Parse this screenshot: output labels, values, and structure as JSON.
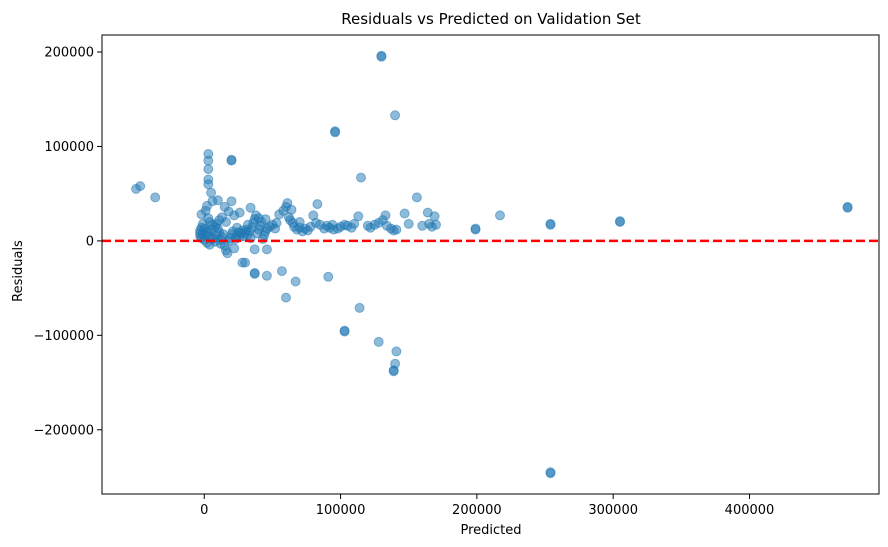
{
  "chart_data": {
    "type": "scatter",
    "title": "Residuals vs Predicted on Validation Set",
    "xlabel": "Predicted",
    "ylabel": "Residuals",
    "xlim": [
      -75000,
      495000
    ],
    "ylim": [
      -268000,
      218000
    ],
    "x_ticks": [
      0,
      100000,
      200000,
      300000,
      400000
    ],
    "x_tick_labels": [
      "0",
      "100000",
      "200000",
      "300000",
      "400000"
    ],
    "y_ticks": [
      -200000,
      -100000,
      0,
      100000,
      200000
    ],
    "y_tick_labels": [
      "−200000",
      "−100000",
      "0",
      "100000",
      "200000"
    ],
    "grid": false,
    "reference_line": {
      "y": 0,
      "color": "#ff0000",
      "style": "dashed"
    },
    "marker_color": "#1f77b4",
    "marker_alpha": 0.5,
    "points": [
      {
        "x": -50000,
        "y": 55000
      },
      {
        "x": -47000,
        "y": 58000
      },
      {
        "x": -36000,
        "y": 46000
      },
      {
        "x": 3000,
        "y": 92000
      },
      {
        "x": 3000,
        "y": 85000
      },
      {
        "x": 3000,
        "y": 76000
      },
      {
        "x": 3000,
        "y": 65000
      },
      {
        "x": 3000,
        "y": 60000
      },
      {
        "x": 5000,
        "y": 51000
      },
      {
        "x": 6000,
        "y": 42000
      },
      {
        "x": 2000,
        "y": 37000
      },
      {
        "x": 1000,
        "y": 32000
      },
      {
        "x": -2000,
        "y": 28000
      },
      {
        "x": 3000,
        "y": 24000
      },
      {
        "x": 4000,
        "y": 20000
      },
      {
        "x": 6000,
        "y": 17000
      },
      {
        "x": 8000,
        "y": 15000
      },
      {
        "x": 10000,
        "y": 13000
      },
      {
        "x": -1000,
        "y": 18000
      },
      {
        "x": -2000,
        "y": 14000
      },
      {
        "x": -3000,
        "y": 11000
      },
      {
        "x": -3000,
        "y": 8000
      },
      {
        "x": -3000,
        "y": 5000
      },
      {
        "x": -2000,
        "y": 3000
      },
      {
        "x": 0,
        "y": 1000
      },
      {
        "x": 2000,
        "y": -2000
      },
      {
        "x": 4000,
        "y": -4000
      },
      {
        "x": 1000,
        "y": 6000
      },
      {
        "x": 3000,
        "y": 9000
      },
      {
        "x": 5000,
        "y": 12000
      },
      {
        "x": 7000,
        "y": 3000
      },
      {
        "x": 9000,
        "y": 6000
      },
      {
        "x": 11000,
        "y": 9000
      },
      {
        "x": 12000,
        "y": 1000
      },
      {
        "x": 13000,
        "y": 4000
      },
      {
        "x": 14000,
        "y": 7000
      },
      {
        "x": 15000,
        "y": -5000
      },
      {
        "x": 16000,
        "y": -10000
      },
      {
        "x": 17000,
        "y": -13000
      },
      {
        "x": 18000,
        "y": 0
      },
      {
        "x": 19000,
        "y": 3000
      },
      {
        "x": 20000,
        "y": 7000
      },
      {
        "x": 21000,
        "y": 10000
      },
      {
        "x": 22000,
        "y": -8000
      },
      {
        "x": 23000,
        "y": 2000
      },
      {
        "x": 24000,
        "y": 6000
      },
      {
        "x": 25000,
        "y": 9000
      },
      {
        "x": 26000,
        "y": 4000
      },
      {
        "x": 27000,
        "y": 8000
      },
      {
        "x": 28000,
        "y": 11000
      },
      {
        "x": 29000,
        "y": 5000
      },
      {
        "x": 30000,
        "y": 9000
      },
      {
        "x": 31000,
        "y": 12000
      },
      {
        "x": 32000,
        "y": 6000
      },
      {
        "x": 33000,
        "y": 10000
      },
      {
        "x": 34000,
        "y": 3000
      },
      {
        "x": 35000,
        "y": 14000
      },
      {
        "x": 36000,
        "y": 19000
      },
      {
        "x": 37000,
        "y": 23000
      },
      {
        "x": 38000,
        "y": 27000
      },
      {
        "x": 39000,
        "y": 8000
      },
      {
        "x": 40000,
        "y": 12000
      },
      {
        "x": 41000,
        "y": 16000
      },
      {
        "x": 42000,
        "y": 20000
      },
      {
        "x": 43000,
        "y": 2000
      },
      {
        "x": 44000,
        "y": 6000
      },
      {
        "x": 45000,
        "y": 10000
      },
      {
        "x": 46000,
        "y": 13000
      },
      {
        "x": 48000,
        "y": 15000
      },
      {
        "x": 50000,
        "y": 17000
      },
      {
        "x": 53000,
        "y": 19000
      },
      {
        "x": 55000,
        "y": 28000
      },
      {
        "x": 58000,
        "y": 32000
      },
      {
        "x": 60000,
        "y": 36000
      },
      {
        "x": 61000,
        "y": 40000
      },
      {
        "x": 62000,
        "y": 25000
      },
      {
        "x": 63000,
        "y": 22000
      },
      {
        "x": 65000,
        "y": 19000
      },
      {
        "x": 66000,
        "y": 15000
      },
      {
        "x": 68000,
        "y": 12000
      },
      {
        "x": 70000,
        "y": 14000
      },
      {
        "x": 72000,
        "y": 10000
      },
      {
        "x": 74000,
        "y": 13000
      },
      {
        "x": 76000,
        "y": 11000
      },
      {
        "x": 78000,
        "y": 15000
      },
      {
        "x": 80000,
        "y": 27000
      },
      {
        "x": 83000,
        "y": 39000
      },
      {
        "x": 85000,
        "y": 17000
      },
      {
        "x": 88000,
        "y": 13000
      },
      {
        "x": 90000,
        "y": 16000
      },
      {
        "x": 92000,
        "y": 14000
      },
      {
        "x": 95000,
        "y": 12000
      },
      {
        "x": 98000,
        "y": 13000
      },
      {
        "x": 100000,
        "y": 15000
      },
      {
        "x": 103000,
        "y": 17000
      },
      {
        "x": 105000,
        "y": 16000
      },
      {
        "x": 110000,
        "y": 18000
      },
      {
        "x": 113000,
        "y": 26000
      },
      {
        "x": 115000,
        "y": 67000
      },
      {
        "x": 122000,
        "y": 14000
      },
      {
        "x": 125000,
        "y": 17000
      },
      {
        "x": 128000,
        "y": 19000
      },
      {
        "x": 131000,
        "y": 22000
      },
      {
        "x": 133000,
        "y": 27000
      },
      {
        "x": 137000,
        "y": 13000
      },
      {
        "x": 139000,
        "y": 11000
      },
      {
        "x": 141000,
        "y": 12000
      },
      {
        "x": 147000,
        "y": 29000
      },
      {
        "x": 156000,
        "y": 46000
      },
      {
        "x": 164000,
        "y": 30000
      },
      {
        "x": 165000,
        "y": 18000
      },
      {
        "x": 167000,
        "y": 15000
      },
      {
        "x": 169000,
        "y": 26000
      },
      {
        "x": 170000,
        "y": 17000
      },
      {
        "x": 199000,
        "y": 13000
      },
      {
        "x": 199000,
        "y": 12000
      },
      {
        "x": 217000,
        "y": 27000
      },
      {
        "x": 254000,
        "y": 18000
      },
      {
        "x": 254000,
        "y": 17000
      },
      {
        "x": 305000,
        "y": 20000
      },
      {
        "x": 305000,
        "y": 21000
      },
      {
        "x": 472000,
        "y": 36000
      },
      {
        "x": 472000,
        "y": 35000
      },
      {
        "x": 130000,
        "y": 196000
      },
      {
        "x": 130000,
        "y": 195000
      },
      {
        "x": 140000,
        "y": 133000
      },
      {
        "x": 96000,
        "y": 116000
      },
      {
        "x": 96000,
        "y": 115000
      },
      {
        "x": 20000,
        "y": 86000
      },
      {
        "x": 20000,
        "y": 85000
      },
      {
        "x": 20000,
        "y": 42000
      },
      {
        "x": 15000,
        "y": 36000
      },
      {
        "x": 10000,
        "y": 43000
      },
      {
        "x": 34000,
        "y": 35000
      },
      {
        "x": 26000,
        "y": 30000
      },
      {
        "x": 18000,
        "y": 31000
      },
      {
        "x": 22000,
        "y": 27000
      },
      {
        "x": 45000,
        "y": 23000
      },
      {
        "x": 37000,
        "y": -9000
      },
      {
        "x": 37000,
        "y": -34000
      },
      {
        "x": 37000,
        "y": -35000
      },
      {
        "x": 46000,
        "y": -9000
      },
      {
        "x": 46000,
        "y": -37000
      },
      {
        "x": 57000,
        "y": -32000
      },
      {
        "x": 30000,
        "y": -23000
      },
      {
        "x": 28000,
        "y": -23000
      },
      {
        "x": 60000,
        "y": -60000
      },
      {
        "x": 67000,
        "y": -43000
      },
      {
        "x": 91000,
        "y": -38000
      },
      {
        "x": 114000,
        "y": -71000
      },
      {
        "x": 103000,
        "y": -96000
      },
      {
        "x": 103000,
        "y": -95000
      },
      {
        "x": 128000,
        "y": -107000
      },
      {
        "x": 141000,
        "y": -117000
      },
      {
        "x": 140000,
        "y": -130000
      },
      {
        "x": 139000,
        "y": -137000
      },
      {
        "x": 139000,
        "y": -138000
      },
      {
        "x": 254000,
        "y": -245000
      },
      {
        "x": 254000,
        "y": -246000
      },
      {
        "x": 12000,
        "y": -3000
      },
      {
        "x": 8000,
        "y": -1000
      },
      {
        "x": 6000,
        "y": 2000
      },
      {
        "x": 4000,
        "y": 5000
      },
      {
        "x": 2000,
        "y": 10000
      },
      {
        "x": 0,
        "y": 13000
      },
      {
        "x": -1000,
        "y": 7000
      },
      {
        "x": 9000,
        "y": 18000
      },
      {
        "x": 11000,
        "y": 22000
      },
      {
        "x": 13000,
        "y": 25000
      },
      {
        "x": 16000,
        "y": 20000
      },
      {
        "x": 24000,
        "y": 14000
      },
      {
        "x": 32000,
        "y": 17000
      },
      {
        "x": 40000,
        "y": 24000
      },
      {
        "x": 52000,
        "y": 13000
      },
      {
        "x": 64000,
        "y": 33000
      },
      {
        "x": 70000,
        "y": 20000
      },
      {
        "x": 82000,
        "y": 19000
      },
      {
        "x": 94000,
        "y": 17000
      },
      {
        "x": 108000,
        "y": 14000
      },
      {
        "x": 120000,
        "y": 16000
      },
      {
        "x": 134000,
        "y": 16000
      },
      {
        "x": 150000,
        "y": 18000
      },
      {
        "x": 160000,
        "y": 16000
      }
    ]
  }
}
